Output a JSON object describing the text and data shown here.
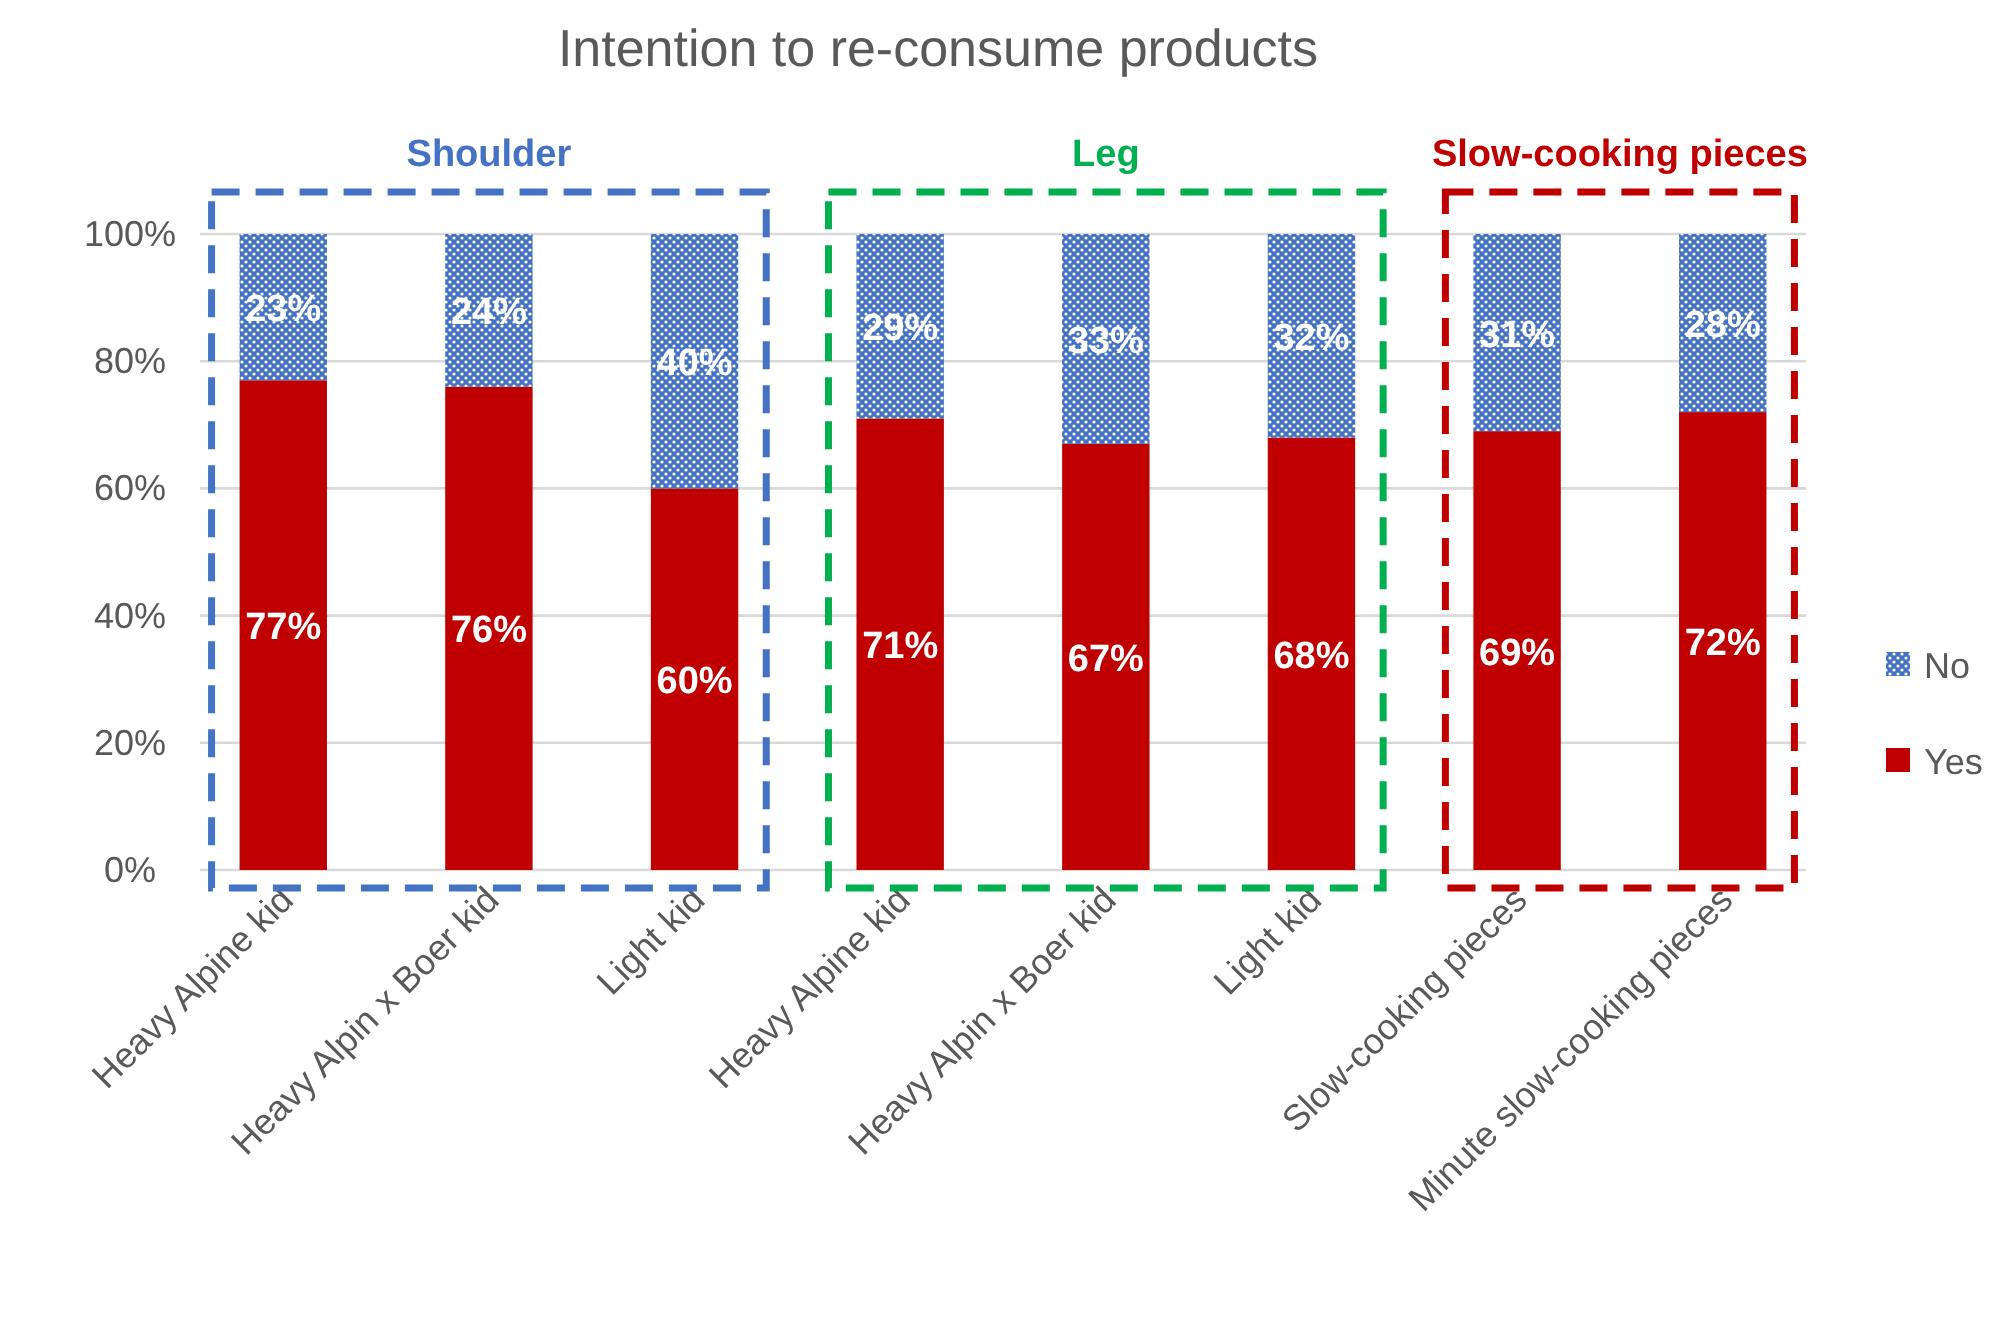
{
  "chart_data": {
    "type": "bar",
    "title": "Intention to re-consume products",
    "stacked": true,
    "categories": [
      "Heavy Alpine kid",
      "Heavy Alpin x Boer kid",
      "Light kid",
      "Heavy Alpine kid",
      "Heavy Alpin x Boer kid",
      "Light kid",
      "Slow-cooking pieces",
      "Minute slow-cooking pieces"
    ],
    "series": [
      {
        "name": "Yes",
        "color": "#c00000",
        "values": [
          77,
          76,
          60,
          71,
          67,
          68,
          69,
          72
        ],
        "value_labels": [
          "77%",
          "76%",
          "60%",
          "71%",
          "67%",
          "68%",
          "69%",
          "72%"
        ]
      },
      {
        "name": "No",
        "color": "#4472c4",
        "values": [
          23,
          24,
          40,
          29,
          33,
          32,
          31,
          28
        ],
        "value_labels": [
          "23%",
          "24%",
          "40%",
          "29%",
          "33%",
          "32%",
          "31%",
          "28%"
        ]
      }
    ],
    "ylim": [
      0,
      100
    ],
    "yticks": [
      {
        "value": 0,
        "label": "0%"
      },
      {
        "value": 20,
        "label": "20%"
      },
      {
        "value": 40,
        "label": "40%"
      },
      {
        "value": 60,
        "label": "60%"
      },
      {
        "value": 80,
        "label": "80%"
      },
      {
        "value": 100,
        "label": "100%"
      }
    ],
    "grid": "y",
    "legend": "right",
    "annotations": [
      "Shoulder",
      "Leg",
      "Slow-cooking pieces"
    ]
  }
}
